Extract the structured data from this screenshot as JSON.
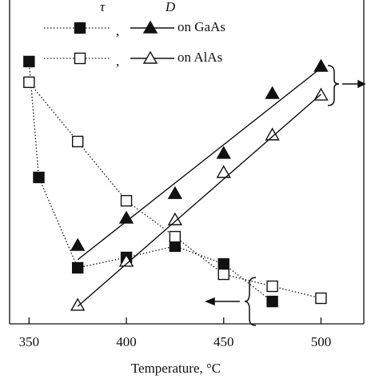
{
  "chart_data": {
    "type": "line",
    "x_label": "Temperature, °C",
    "xlim": [
      340,
      522
    ],
    "xticks": [
      350,
      400,
      450,
      500
    ],
    "ylim": [
      0,
      100
    ],
    "legend": {
      "headers": [
        "τ",
        "D"
      ],
      "separator": ",",
      "labels": [
        "on GaAs",
        "on AlAs"
      ]
    },
    "series": [
      {
        "color": "#111111",
        "marker": "square-filled",
        "line": "dotted",
        "x": [
          350,
          355,
          375,
          400,
          425,
          450,
          475
        ],
        "values": [
          81.0,
          45.2,
          17.3,
          20.5,
          24.0,
          18.5,
          6.9
        ]
      },
      {
        "color": "#111111",
        "marker": "square-open",
        "line": "dotted",
        "x": [
          350,
          375,
          400,
          425,
          450,
          475,
          500
        ],
        "values": [
          74.6,
          56.3,
          38.0,
          26.9,
          15.3,
          11.6,
          7.9
        ]
      },
      {
        "color": "#111111",
        "marker": "triangle-filled",
        "line": "none",
        "x": [
          375,
          400,
          425,
          450,
          475,
          500
        ],
        "values": [
          24.2,
          32.6,
          40.2,
          52.6,
          71.1,
          79.5
        ]
      },
      {
        "color": "#111111",
        "marker": "triangle-open",
        "line": "none",
        "x": [
          375,
          400,
          425,
          450,
          475,
          500
        ],
        "values": [
          5.7,
          19.3,
          32.1,
          46.7,
          58.3,
          70.6
        ]
      },
      {
        "color": "#111111",
        "marker": "none",
        "line": "solid",
        "x": [
          375,
          500
        ],
        "values": [
          19.8,
          79.0
        ]
      },
      {
        "color": "#111111",
        "marker": "none",
        "line": "solid",
        "x": [
          375,
          500
        ],
        "values": [
          5.4,
          70.9
        ]
      }
    ]
  }
}
